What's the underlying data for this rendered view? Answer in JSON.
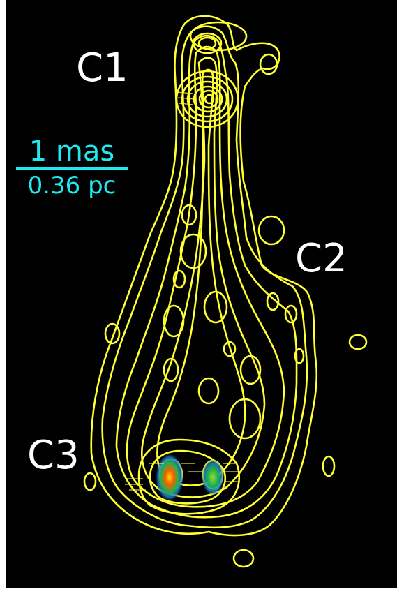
{
  "figure": {
    "background_color": "#000000",
    "contour_color": "#ffff33",
    "label_color": "#ffffff",
    "scale_color": "#1ee8f0"
  },
  "labels": {
    "c1": "C1",
    "c2": "C2",
    "c3": "C3"
  },
  "scale_bar": {
    "top": "1 mas",
    "bottom": "0.36 pc"
  }
}
